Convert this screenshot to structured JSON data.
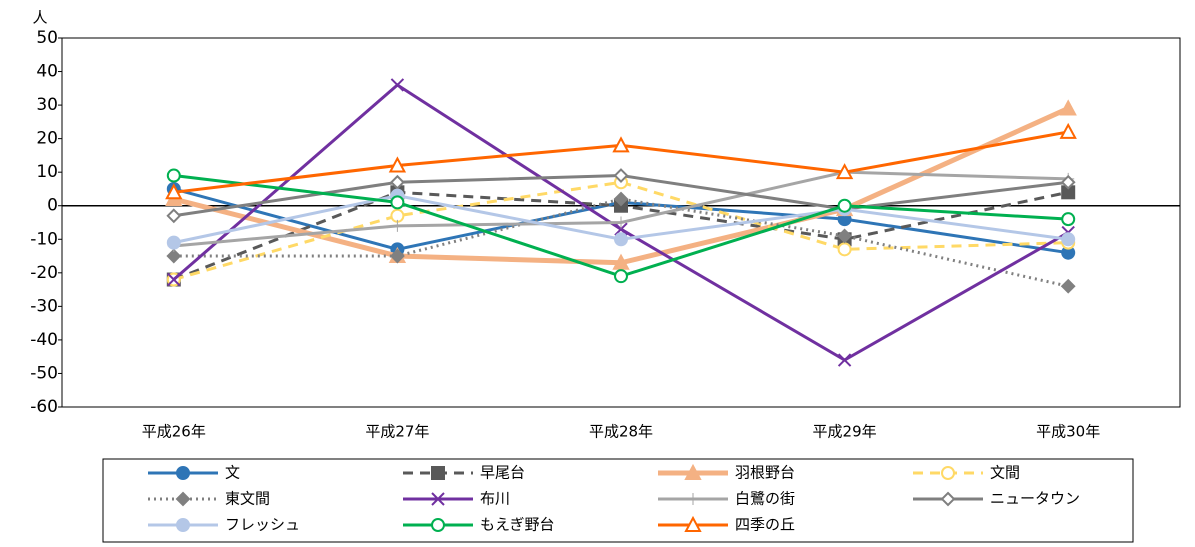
{
  "chart_data": {
    "type": "line",
    "y_label": "人",
    "categories": [
      "平成26年",
      "平成27年",
      "平成28年",
      "平成29年",
      "平成30年"
    ],
    "ylim": [
      -60,
      50
    ],
    "yticks": [
      -60,
      -50,
      -40,
      -30,
      -20,
      -10,
      0,
      10,
      20,
      30,
      40,
      50
    ],
    "legend": "bottom",
    "series": [
      {
        "name": "文",
        "color": "#2e75b6",
        "dash": "solid",
        "width": 3,
        "marker": "circle",
        "filled": true,
        "values": [
          5,
          -13,
          1,
          -4,
          -14
        ]
      },
      {
        "name": "早尾台",
        "color": "#595959",
        "dash": "dashed",
        "width": 3,
        "marker": "square",
        "filled": true,
        "values": [
          -22,
          4,
          0,
          -10,
          4
        ]
      },
      {
        "name": "羽根野台",
        "color": "#f4b183",
        "dash": "solid",
        "width": 5,
        "marker": "triangle",
        "filled": true,
        "values": [
          2,
          -15,
          -17,
          -1,
          29
        ]
      },
      {
        "name": "文間",
        "color": "#ffd966",
        "dash": "dashed",
        "width": 3,
        "marker": "circle",
        "filled": false,
        "values": [
          -22,
          -3,
          7,
          -13,
          -11
        ]
      },
      {
        "name": "東文間",
        "color": "#808080",
        "dash": "dotted",
        "width": 3,
        "marker": "diamond",
        "filled": true,
        "values": [
          -15,
          -15,
          2,
          -9,
          -24
        ]
      },
      {
        "name": "布川",
        "color": "#7030a0",
        "dash": "solid",
        "width": 3,
        "marker": "x",
        "filled": false,
        "values": [
          -22,
          36,
          -7,
          -46,
          -8
        ]
      },
      {
        "name": "白鷺の街",
        "color": "#a5a5a5",
        "dash": "solid",
        "width": 3,
        "marker": "plus",
        "filled": false,
        "values": [
          -12,
          -6,
          -5,
          10,
          8
        ]
      },
      {
        "name": "ニュータウン",
        "color": "#7f7f7f",
        "dash": "solid",
        "width": 3,
        "marker": "diamond",
        "filled": false,
        "values": [
          -3,
          7,
          9,
          -1,
          7
        ]
      },
      {
        "name": "フレッシュ",
        "color": "#b4c7e7",
        "dash": "solid",
        "width": 3,
        "marker": "circle",
        "filled": true,
        "values": [
          -11,
          3,
          -10,
          -1,
          -10
        ]
      },
      {
        "name": "もえぎ野台",
        "color": "#00b050",
        "dash": "solid",
        "width": 3,
        "marker": "circle",
        "filled": false,
        "values": [
          9,
          1,
          -21,
          0,
          -4
        ]
      },
      {
        "name": "四季の丘",
        "color": "#ff6600",
        "dash": "solid",
        "width": 3,
        "marker": "triangle",
        "filled": false,
        "values": [
          4,
          12,
          18,
          10,
          22
        ]
      }
    ]
  }
}
